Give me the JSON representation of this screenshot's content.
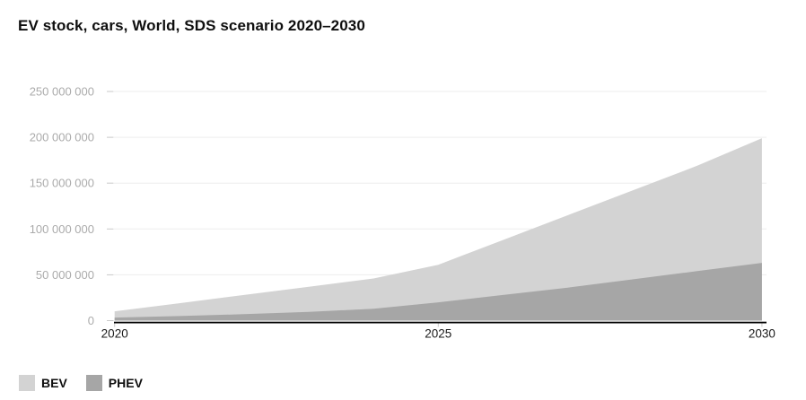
{
  "title": "EV stock, cars, World, SDS scenario 2020–2030",
  "chart_data": {
    "type": "area",
    "stacked": true,
    "title": "EV stock, cars, World, SDS scenario 2020–2030",
    "xlabel": "",
    "ylabel": "",
    "x": [
      2020,
      2021,
      2022,
      2023,
      2024,
      2025,
      2026,
      2027,
      2028,
      2029,
      2030
    ],
    "x_ticks": [
      2020,
      2025,
      2030
    ],
    "x_tick_labels": [
      "2020",
      "2025",
      "2030"
    ],
    "ylim": [
      0,
      250000000
    ],
    "y_ticks": [
      0,
      50000000,
      100000000,
      150000000,
      200000000,
      250000000
    ],
    "y_tick_labels": [
      "0",
      "50 000 000",
      "100 000 000",
      "150 000 000",
      "200 000 000",
      "250 000 000"
    ],
    "grid": true,
    "legend_position": "bottom-left",
    "stack_order_bottom_to_top": [
      "PHEV",
      "BEV"
    ],
    "series": [
      {
        "name": "BEV",
        "color": "#d3d3d3",
        "values": [
          6900000,
          14000000,
          21000000,
          27500000,
          33000000,
          41000000,
          60000000,
          79000000,
          97000000,
          115000000,
          136000000
        ]
      },
      {
        "name": "PHEV",
        "color": "#a6a6a6",
        "values": [
          3300000,
          5000000,
          7000000,
          9500000,
          13000000,
          20000000,
          28000000,
          36000000,
          45000000,
          54000000,
          63000000
        ]
      }
    ],
    "totals": [
      10200000,
      19000000,
      28000000,
      37000000,
      46000000,
      61000000,
      88000000,
      115000000,
      142000000,
      169000000,
      199000000
    ]
  },
  "legend": {
    "items": [
      {
        "label": "BEV",
        "color": "#d3d3d3"
      },
      {
        "label": "PHEV",
        "color": "#a6a6a6"
      }
    ]
  },
  "colors": {
    "background": "#ffffff",
    "title_text": "#0f0f0f",
    "gridline": "#ededed",
    "axis_line": "#000000",
    "tick_mark": "#c9c9c9",
    "y_tick_text": "#ababab",
    "x_tick_text": "#1a1a1a",
    "bev_area": "#d3d3d3",
    "phev_area": "#a6a6a6"
  }
}
